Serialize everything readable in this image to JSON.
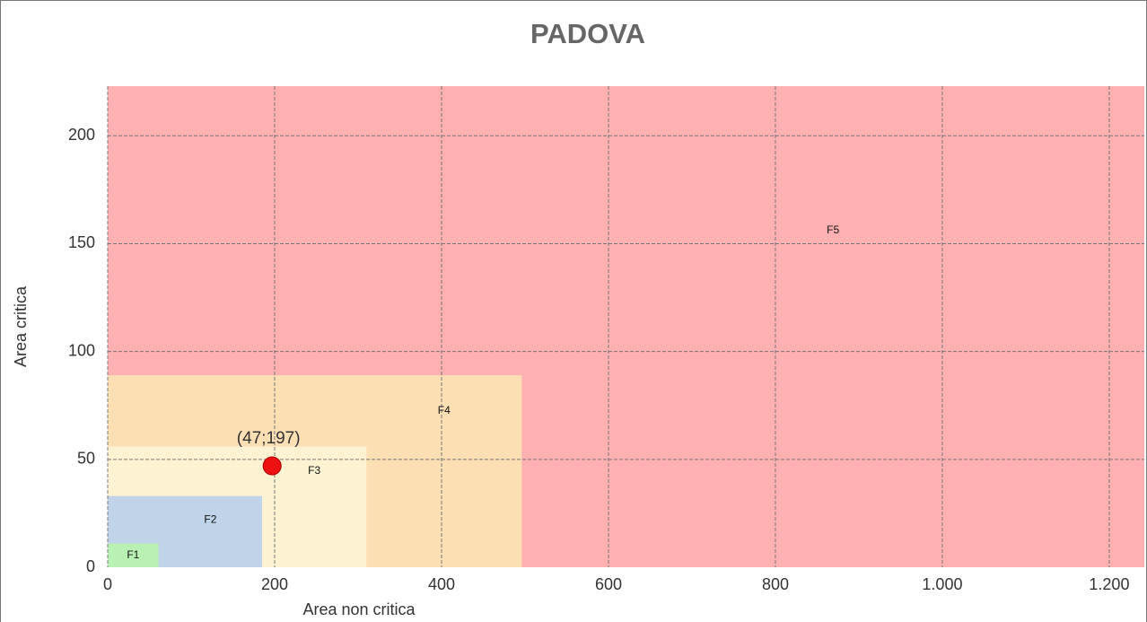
{
  "chart_data": {
    "type": "zones",
    "title": "PADOVA",
    "x_label": "Area non critica",
    "y_label": "Area critica",
    "xlim": [
      0,
      1242
    ],
    "ylim": [
      0,
      223
    ],
    "xticks": [
      0,
      200,
      400,
      600,
      800,
      {
        "value": 1000,
        "label": "1.000"
      },
      {
        "value": 1200,
        "label": "1.200"
      }
    ],
    "yticks": [
      0,
      50,
      100,
      150,
      200
    ],
    "grid": true,
    "zones": [
      {
        "name": "F1",
        "color": "#b9f0b3",
        "x": [
          0,
          61
        ],
        "y": [
          0,
          11
        ]
      },
      {
        "name": "F2",
        "color": "#c0d3e9",
        "x": [
          0,
          185
        ],
        "y": [
          0,
          33
        ]
      },
      {
        "name": "F3",
        "color": "#fdf2d2",
        "x": [
          0,
          310
        ],
        "y": [
          0,
          56
        ]
      },
      {
        "name": "F4",
        "color": "#fddfb4",
        "x": [
          0,
          496
        ],
        "y": [
          0,
          89
        ]
      },
      {
        "name": "F5",
        "color": "#ffb0b1",
        "x": [
          0,
          1242
        ],
        "y": [
          0,
          223
        ]
      }
    ],
    "point": {
      "x": 197,
      "y": 47,
      "label": "(47;197)",
      "color": "#ee1111"
    }
  }
}
